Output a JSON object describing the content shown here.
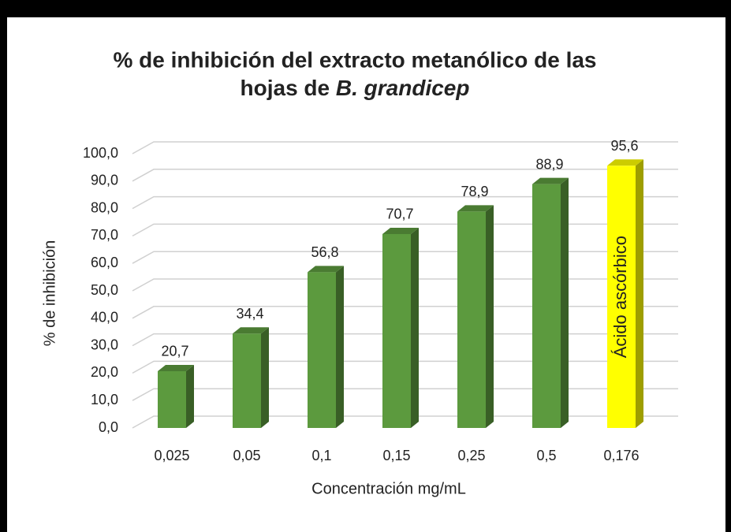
{
  "chart_data": {
    "type": "bar3d",
    "title": {
      "line1": "% de inhibición del extracto metanólico de las",
      "line2": "hojas de",
      "line2_italic": "B. grandicep"
    },
    "x_label": "Concentración mg/mL",
    "y_label": "% de inhibición",
    "categories": [
      "0,025",
      "0,05",
      "0,1",
      "0,15",
      "0,25",
      "0,5",
      "0,176"
    ],
    "values": [
      20.7,
      34.4,
      56.8,
      70.7,
      78.9,
      88.9,
      95.6
    ],
    "value_labels": [
      "20,7",
      "34,4",
      "56,8",
      "70,7",
      "78,9",
      "88,9",
      "95,6"
    ],
    "colors": [
      "#5c9a3e",
      "#5c9a3e",
      "#5c9a3e",
      "#5c9a3e",
      "#5c9a3e",
      "#5c9a3e",
      "#ffff00"
    ],
    "annotations": [
      {
        "text": "Ácido ascórbico",
        "category": "0,176"
      }
    ],
    "ylim": [
      0,
      100
    ],
    "yticks": [
      {
        "value": 0,
        "label": "0,0"
      },
      {
        "value": 10,
        "label": "10,0"
      },
      {
        "value": 20,
        "label": "20,0"
      },
      {
        "value": 30,
        "label": "30,0"
      },
      {
        "value": 40,
        "label": "40,0"
      },
      {
        "value": 50,
        "label": "50,0"
      },
      {
        "value": 60,
        "label": "60,0"
      },
      {
        "value": 70,
        "label": "70,0"
      },
      {
        "value": 80,
        "label": "80,0"
      },
      {
        "value": 90,
        "label": "90,0"
      },
      {
        "value": 100,
        "label": "100,0"
      }
    ],
    "grid": true
  }
}
